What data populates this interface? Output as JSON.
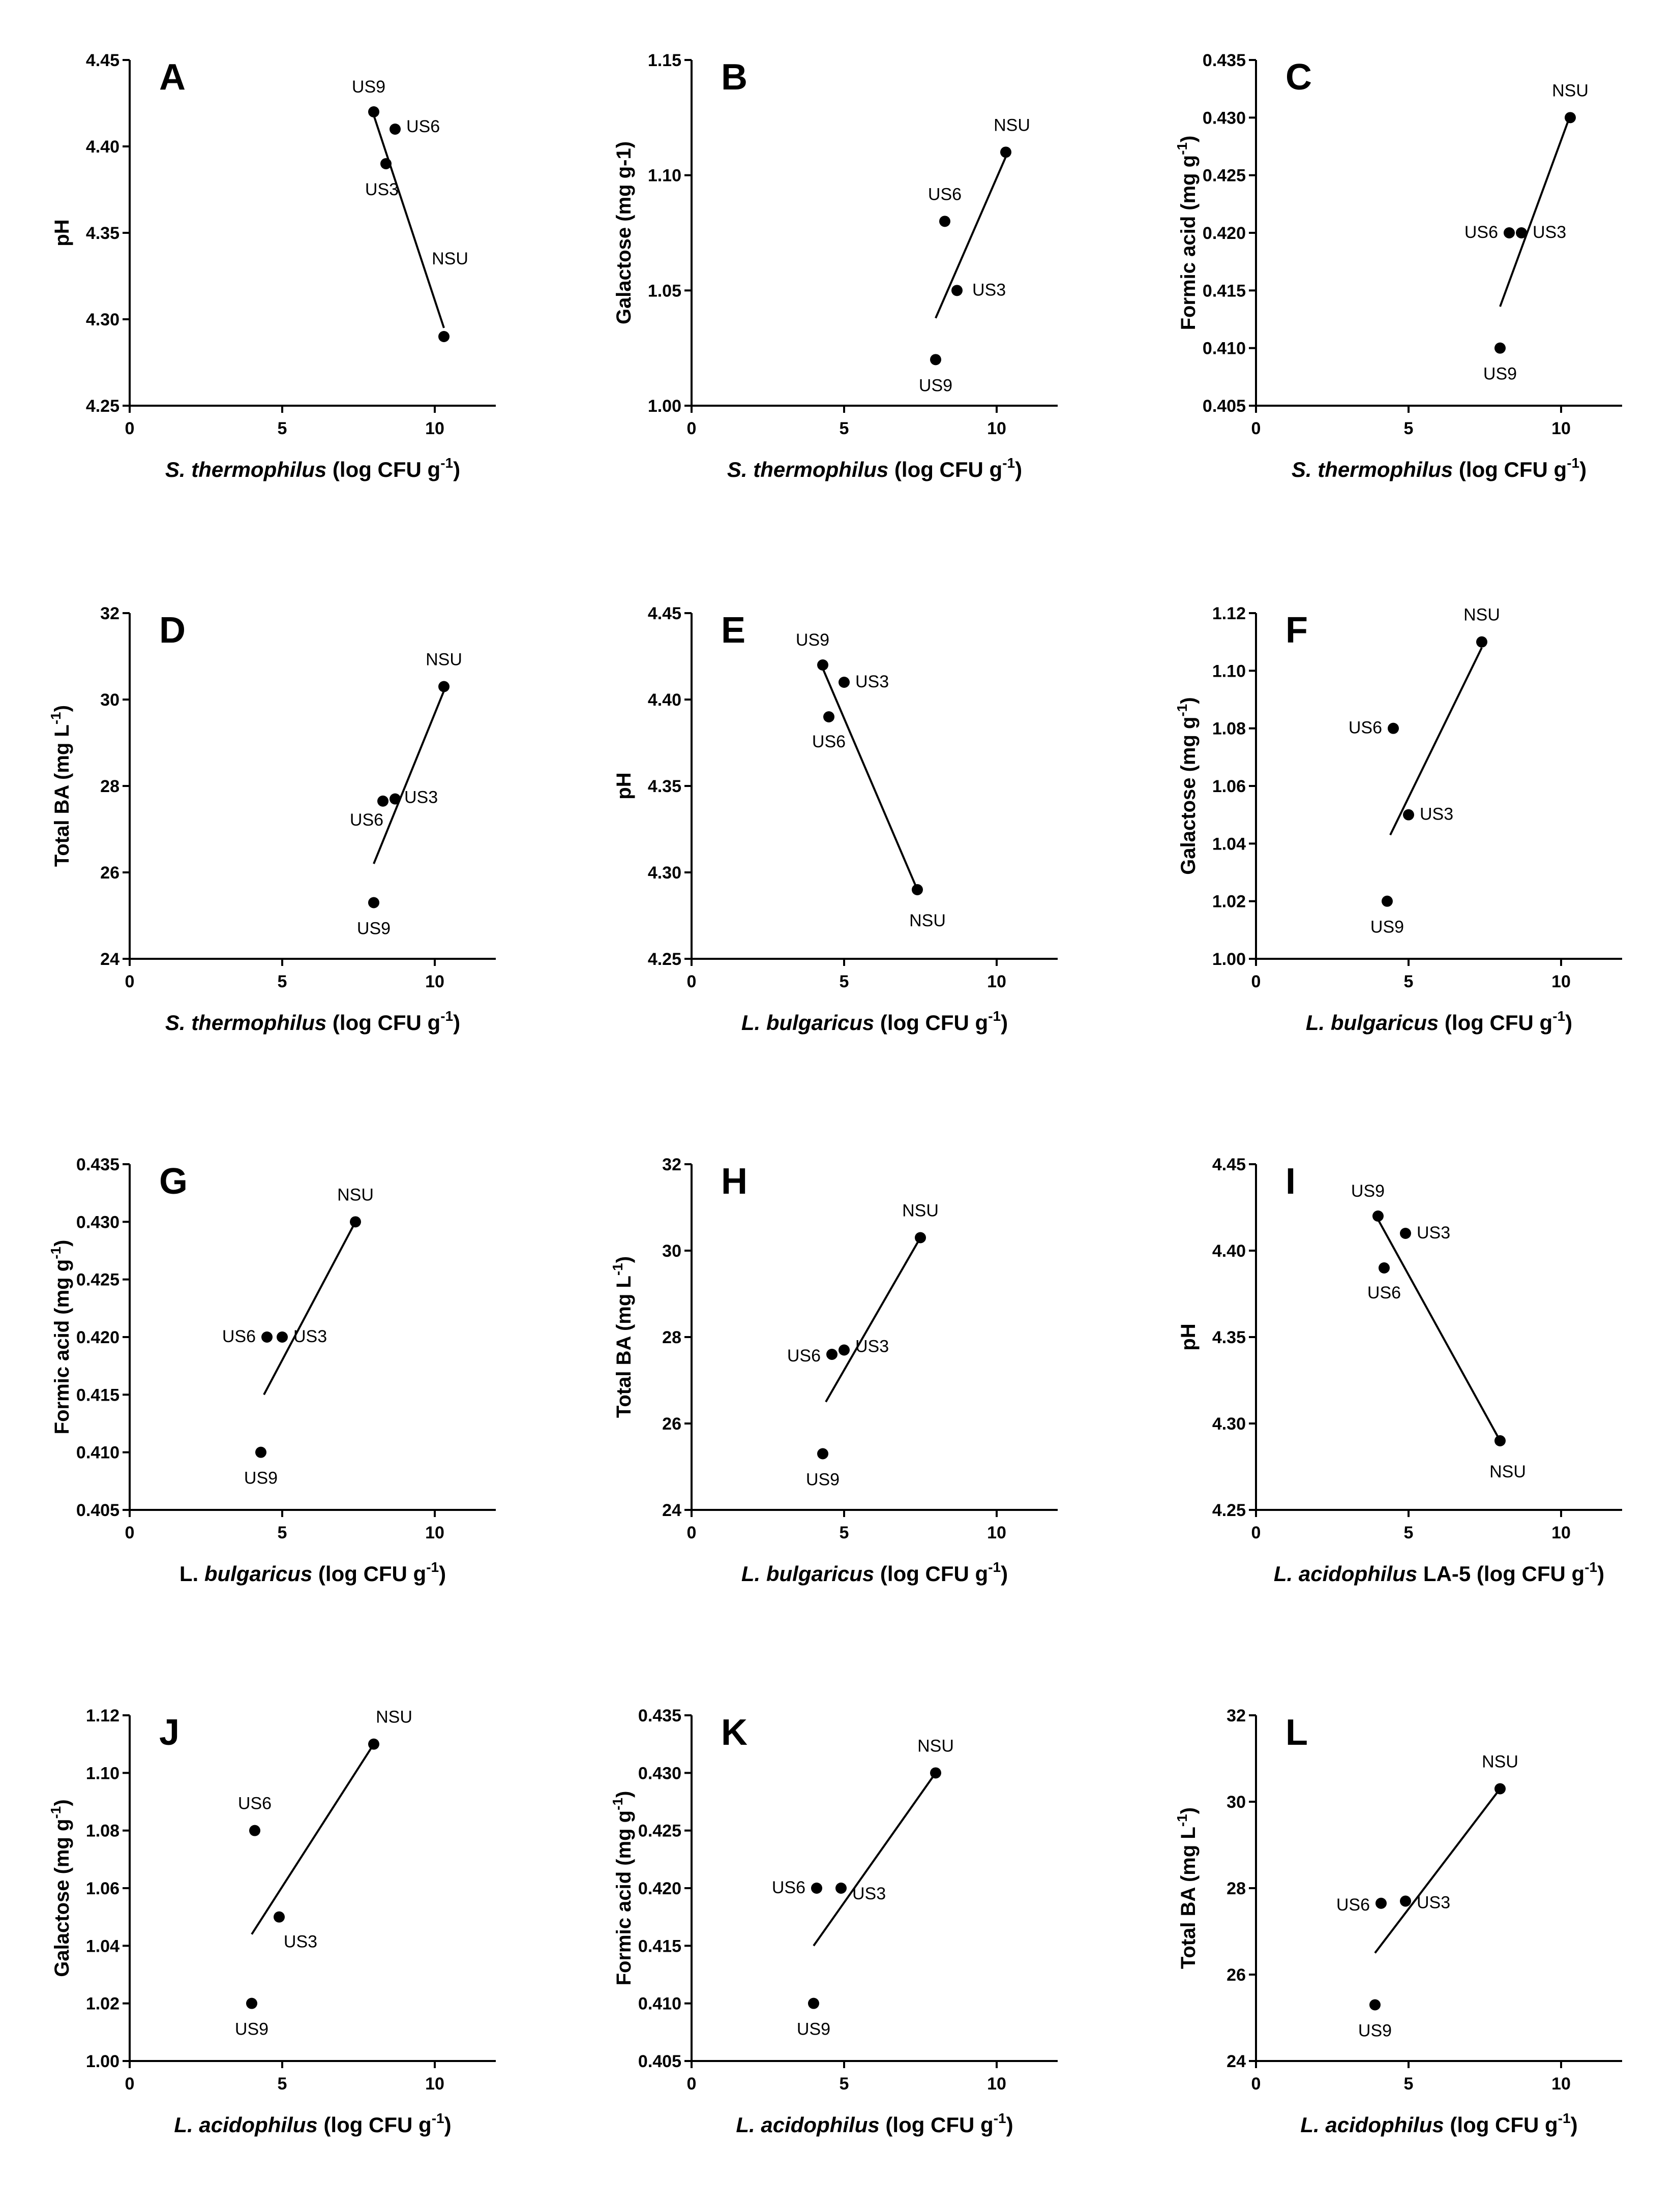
{
  "chart_data": [
    {
      "panel": "A",
      "type": "scatter",
      "ylabel": "pH",
      "xlabel_italic": "S. thermophilus",
      "xlabel_rest": " (log CFU g",
      "xlabel_sup": "-1",
      "xlabel_close": ")",
      "xlim": [
        0,
        12
      ],
      "xticks": [
        "0",
        "5",
        "10"
      ],
      "xtick_values": [
        0,
        5,
        10
      ],
      "ylim": [
        4.25,
        4.45
      ],
      "yticks": [
        "4.25",
        "4.30",
        "4.35",
        "4.40",
        "4.45"
      ],
      "ytick_values": [
        4.25,
        4.3,
        4.35,
        4.4,
        4.45
      ],
      "points": [
        {
          "label": "US9",
          "x": 8.0,
          "y": 4.42
        },
        {
          "label": "US6",
          "x": 8.7,
          "y": 4.41
        },
        {
          "label": "US3",
          "x": 8.4,
          "y": 4.39
        },
        {
          "label": "NSU",
          "x": 10.3,
          "y": 4.29
        }
      ],
      "fit": [
        [
          8.0,
          4.418
        ],
        [
          10.3,
          4.295
        ]
      ]
    },
    {
      "panel": "B",
      "type": "scatter",
      "ylabel": "Galactose (mg g-1)",
      "xlabel_italic": "S. thermophilus",
      "xlabel_rest": " (log CFU g",
      "xlabel_sup": "-1",
      "xlabel_close": ")",
      "xlim": [
        0,
        12
      ],
      "xticks": [
        "0",
        "5",
        "10"
      ],
      "xtick_values": [
        0,
        5,
        10
      ],
      "ylim": [
        1.0,
        1.15
      ],
      "yticks": [
        "1.00",
        "1.05",
        "1.10",
        "1.15"
      ],
      "ytick_values": [
        1.0,
        1.05,
        1.1,
        1.15
      ],
      "points": [
        {
          "label": "US6",
          "x": 8.3,
          "y": 1.08
        },
        {
          "label": "US3",
          "x": 8.7,
          "y": 1.05
        },
        {
          "label": "US9",
          "x": 8.0,
          "y": 1.02
        },
        {
          "label": "NSU",
          "x": 10.3,
          "y": 1.11
        }
      ],
      "fit": [
        [
          8.0,
          1.038
        ],
        [
          10.3,
          1.108
        ]
      ]
    },
    {
      "panel": "C",
      "type": "scatter",
      "ylabel": "Formic acid (mg g",
      "ylabel_sup": "-1",
      "ylabel_close": ")",
      "xlabel_italic": "S. thermophilus",
      "xlabel_rest": " (log CFU g",
      "xlabel_sup": "-1",
      "xlabel_close": ")",
      "xlim": [
        0,
        12
      ],
      "xticks": [
        "0",
        "5",
        "10"
      ],
      "xtick_values": [
        0,
        5,
        10
      ],
      "ylim": [
        0.405,
        0.435
      ],
      "yticks": [
        "0.405",
        "0.410",
        "0.415",
        "0.420",
        "0.425",
        "0.430",
        "0.435"
      ],
      "ytick_values": [
        0.405,
        0.41,
        0.415,
        0.42,
        0.425,
        0.43,
        0.435
      ],
      "points": [
        {
          "label": "NSU",
          "x": 10.3,
          "y": 0.43
        },
        {
          "label": "US6",
          "x": 8.3,
          "y": 0.42
        },
        {
          "label": "US3",
          "x": 8.7,
          "y": 0.42
        },
        {
          "label": "US9",
          "x": 8.0,
          "y": 0.41
        }
      ],
      "fit": [
        [
          8.0,
          0.4136
        ],
        [
          10.3,
          0.4302
        ]
      ]
    },
    {
      "panel": "D",
      "type": "scatter",
      "ylabel": "Total BA (mg L",
      "ylabel_sup": "-1",
      "ylabel_close": ")",
      "xlabel_italic": "S. thermophilus",
      "xlabel_rest": " (log CFU g",
      "xlabel_sup": "-1",
      "xlabel_close": ")",
      "xlim": [
        0,
        12
      ],
      "xticks": [
        "0",
        "5",
        "10"
      ],
      "xtick_values": [
        0,
        5,
        10
      ],
      "ylim": [
        24,
        32
      ],
      "yticks": [
        "24",
        "26",
        "28",
        "30",
        "32"
      ],
      "ytick_values": [
        24,
        26,
        28,
        30,
        32
      ],
      "points": [
        {
          "label": "NSU",
          "x": 10.3,
          "y": 30.3
        },
        {
          "label": "US3",
          "x": 8.7,
          "y": 27.7
        },
        {
          "label": "US6",
          "x": 8.3,
          "y": 27.65
        },
        {
          "label": "US9",
          "x": 8.0,
          "y": 25.3
        }
      ],
      "fit": [
        [
          8.0,
          26.2
        ],
        [
          10.3,
          30.2
        ]
      ]
    },
    {
      "panel": "E",
      "type": "scatter",
      "ylabel": "pH",
      "xlabel_italic": "L. bulgaricus",
      "xlabel_rest": " (log CFU g",
      "xlabel_sup": "-1",
      "xlabel_close": ")",
      "xlim": [
        0,
        12
      ],
      "xticks": [
        "0",
        "5",
        "10"
      ],
      "xtick_values": [
        0,
        5,
        10
      ],
      "ylim": [
        4.25,
        4.45
      ],
      "yticks": [
        "4.25",
        "4.30",
        "4.35",
        "4.40",
        "4.45"
      ],
      "ytick_values": [
        4.25,
        4.3,
        4.35,
        4.4,
        4.45
      ],
      "points": [
        {
          "label": "US9",
          "x": 4.3,
          "y": 4.42
        },
        {
          "label": "US3",
          "x": 5.0,
          "y": 4.41
        },
        {
          "label": "US6",
          "x": 4.5,
          "y": 4.39
        },
        {
          "label": "NSU",
          "x": 7.4,
          "y": 4.29
        }
      ],
      "fit": [
        [
          4.3,
          4.418
        ],
        [
          7.4,
          4.29
        ]
      ]
    },
    {
      "panel": "F",
      "type": "scatter",
      "ylabel": "Galactose (mg g",
      "ylabel_sup": "-1",
      "ylabel_close": ")",
      "xlabel_italic": "L. bulgaricus",
      "xlabel_rest": " (log CFU g",
      "xlabel_sup": "-1",
      "xlabel_close": ")",
      "xlim": [
        0,
        12
      ],
      "xticks": [
        "0",
        "5",
        "10"
      ],
      "xtick_values": [
        0,
        5,
        10
      ],
      "ylim": [
        1.0,
        1.12
      ],
      "yticks": [
        "1.00",
        "1.02",
        "1.04",
        "1.06",
        "1.08",
        "1.10",
        "1.12"
      ],
      "ytick_values": [
        1.0,
        1.02,
        1.04,
        1.06,
        1.08,
        1.1,
        1.12
      ],
      "points": [
        {
          "label": "NSU",
          "x": 7.4,
          "y": 1.11
        },
        {
          "label": "US6",
          "x": 4.5,
          "y": 1.08
        },
        {
          "label": "US3",
          "x": 5.0,
          "y": 1.05
        },
        {
          "label": "US9",
          "x": 4.3,
          "y": 1.02
        }
      ],
      "fit": [
        [
          4.4,
          1.043
        ],
        [
          7.4,
          1.108
        ]
      ]
    },
    {
      "panel": "G",
      "type": "scatter",
      "ylabel": "Formic acid (mg g",
      "ylabel_sup": "-1",
      "ylabel_close": ")",
      "xlabel_italic": "L. bulgaricus",
      "xlabel_prefix": "L. ",
      "xlabel_italic_part": "bulgaricus",
      "xlabel_rest": " (log CFU g",
      "xlabel_sup": "-1",
      "xlabel_close": ")",
      "xlim": [
        0,
        12
      ],
      "xticks": [
        "0",
        "5",
        "10"
      ],
      "xtick_values": [
        0,
        5,
        10
      ],
      "ylim": [
        0.405,
        0.435
      ],
      "yticks": [
        "0.405",
        "0.410",
        "0.415",
        "0.420",
        "0.425",
        "0.430",
        "0.435"
      ],
      "ytick_values": [
        0.405,
        0.41,
        0.415,
        0.42,
        0.425,
        0.43,
        0.435
      ],
      "points": [
        {
          "label": "NSU",
          "x": 7.4,
          "y": 0.43
        },
        {
          "label": "US6",
          "x": 4.5,
          "y": 0.42
        },
        {
          "label": "US3",
          "x": 5.0,
          "y": 0.42
        },
        {
          "label": "US9",
          "x": 4.3,
          "y": 0.41
        }
      ],
      "fit": [
        [
          4.4,
          0.415
        ],
        [
          7.4,
          0.43
        ]
      ]
    },
    {
      "panel": "H",
      "type": "scatter",
      "ylabel": "Total BA (mg L",
      "ylabel_sup": "-1",
      "ylabel_close": ")",
      "xlabel_italic": "L. bulgaricus",
      "xlabel_rest": " (log CFU g",
      "xlabel_sup": "-1",
      "xlabel_close": ")",
      "xlim": [
        0,
        12
      ],
      "xticks": [
        "0",
        "5",
        "10"
      ],
      "xtick_values": [
        0,
        5,
        10
      ],
      "ylim": [
        24,
        32
      ],
      "yticks": [
        "24",
        "26",
        "28",
        "30",
        "32"
      ],
      "ytick_values": [
        24,
        26,
        28,
        30,
        32
      ],
      "points": [
        {
          "label": "NSU",
          "x": 7.5,
          "y": 30.3
        },
        {
          "label": "US6",
          "x": 4.6,
          "y": 27.6
        },
        {
          "label": "US3",
          "x": 5.0,
          "y": 27.7
        },
        {
          "label": "US9",
          "x": 4.3,
          "y": 25.3
        }
      ],
      "fit": [
        [
          4.4,
          26.5
        ],
        [
          7.5,
          30.3
        ]
      ]
    },
    {
      "panel": "I",
      "type": "scatter",
      "ylabel": "pH",
      "xlabel_italic": "L. acidophilus",
      "xlabel_rest": " LA-5 (log CFU g",
      "xlabel_sup": "-1",
      "xlabel_close": ")",
      "xlim": [
        0,
        12
      ],
      "xticks": [
        "0",
        "5",
        "10"
      ],
      "xtick_values": [
        0,
        5,
        10
      ],
      "ylim": [
        4.25,
        4.45
      ],
      "yticks": [
        "4.25",
        "4.30",
        "4.35",
        "4.40",
        "4.45"
      ],
      "ytick_values": [
        4.25,
        4.3,
        4.35,
        4.4,
        4.45
      ],
      "points": [
        {
          "label": "US9",
          "x": 4.0,
          "y": 4.42
        },
        {
          "label": "US3",
          "x": 4.9,
          "y": 4.41
        },
        {
          "label": "US6",
          "x": 4.2,
          "y": 4.39
        },
        {
          "label": "NSU",
          "x": 8.0,
          "y": 4.29
        }
      ],
      "fit": [
        [
          4.0,
          4.418
        ],
        [
          8.0,
          4.29
        ]
      ]
    },
    {
      "panel": "J",
      "type": "scatter",
      "ylabel": "Galactose (mg g",
      "ylabel_sup": "-1",
      "ylabel_close": ")",
      "xlabel_italic": "L. acidophilus",
      "xlabel_rest": " (log CFU g",
      "xlabel_sup": "-1",
      "xlabel_close": ")",
      "xlim": [
        0,
        12
      ],
      "xticks": [
        "0",
        "5",
        "10"
      ],
      "xtick_values": [
        0,
        5,
        10
      ],
      "ylim": [
        1.0,
        1.12
      ],
      "yticks": [
        "1.00",
        "1.02",
        "1.04",
        "1.06",
        "1.08",
        "1.10",
        "1.12"
      ],
      "ytick_values": [
        1.0,
        1.02,
        1.04,
        1.06,
        1.08,
        1.1,
        1.12
      ],
      "points": [
        {
          "label": "NSU",
          "x": 8.0,
          "y": 1.11
        },
        {
          "label": "US6",
          "x": 4.1,
          "y": 1.08
        },
        {
          "label": "US3",
          "x": 4.9,
          "y": 1.05
        },
        {
          "label": "US9",
          "x": 4.0,
          "y": 1.02
        }
      ],
      "fit": [
        [
          4.0,
          1.044
        ],
        [
          8.0,
          1.11
        ]
      ]
    },
    {
      "panel": "K",
      "type": "scatter",
      "ylabel": "Formic acid (mg g",
      "ylabel_sup": "-1",
      "ylabel_close": ")",
      "xlabel_italic": "L. acidophilus",
      "xlabel_rest": " (log CFU g",
      "xlabel_sup": "-1",
      "xlabel_close": ")",
      "xlim": [
        0,
        12
      ],
      "xticks": [
        "0",
        "5",
        "10"
      ],
      "xtick_values": [
        0,
        5,
        10
      ],
      "ylim": [
        0.405,
        0.435
      ],
      "yticks": [
        "0.405",
        "0.410",
        "0.415",
        "0.420",
        "0.425",
        "0.430",
        "0.435"
      ],
      "ytick_values": [
        0.405,
        0.41,
        0.415,
        0.42,
        0.425,
        0.43,
        0.435
      ],
      "points": [
        {
          "label": "NSU",
          "x": 8.0,
          "y": 0.43
        },
        {
          "label": "US6",
          "x": 4.1,
          "y": 0.42
        },
        {
          "label": "US3",
          "x": 4.9,
          "y": 0.42
        },
        {
          "label": "US9",
          "x": 4.0,
          "y": 0.41
        }
      ],
      "fit": [
        [
          4.0,
          0.415
        ],
        [
          8.0,
          0.43
        ]
      ]
    },
    {
      "panel": "L",
      "type": "scatter",
      "ylabel": "Total BA (mg L",
      "ylabel_sup": "-1",
      "ylabel_close": ")",
      "xlabel_italic": "L. acidophilus",
      "xlabel_rest": " (log CFU g",
      "xlabel_sup": "-1",
      "xlabel_close": ")",
      "xlim": [
        0,
        12
      ],
      "xticks": [
        "0",
        "5",
        "10"
      ],
      "xtick_values": [
        0,
        5,
        10
      ],
      "ylim": [
        24,
        32
      ],
      "yticks": [
        "24",
        "26",
        "28",
        "30",
        "32"
      ],
      "ytick_values": [
        24,
        26,
        28,
        30,
        32
      ],
      "points": [
        {
          "label": "NSU",
          "x": 8.0,
          "y": 30.3
        },
        {
          "label": "US6",
          "x": 4.1,
          "y": 27.65
        },
        {
          "label": "US3",
          "x": 4.9,
          "y": 27.7
        },
        {
          "label": "US9",
          "x": 3.9,
          "y": 25.3
        }
      ],
      "fit": [
        [
          3.9,
          26.5
        ],
        [
          8.0,
          30.3
        ]
      ]
    }
  ]
}
